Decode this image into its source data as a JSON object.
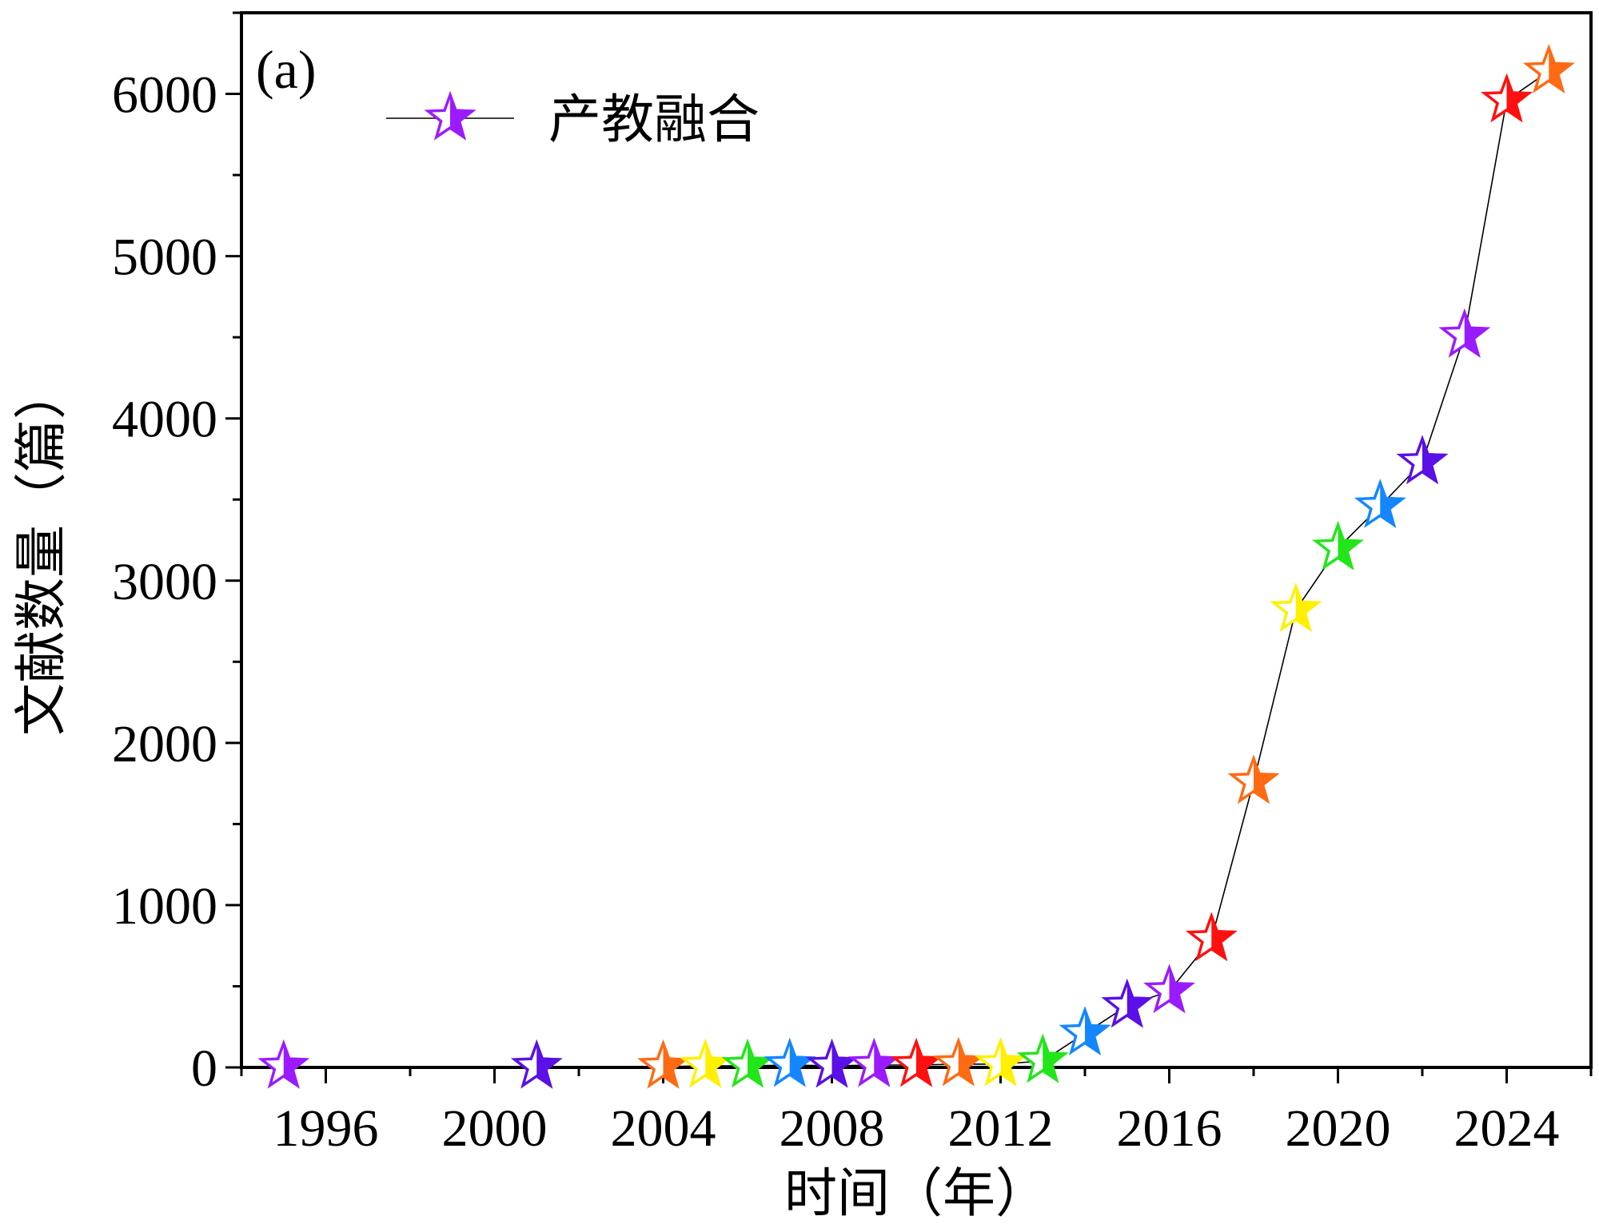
{
  "chart_data": {
    "type": "line",
    "panel_label": "(a)",
    "xlabel": "时间（年）",
    "ylabel": "文献数量（篇）",
    "xlim": [
      1994,
      2026
    ],
    "ylim": [
      0,
      6500
    ],
    "x_ticks": [
      1996,
      2000,
      2004,
      2008,
      2012,
      2016,
      2020,
      2024
    ],
    "y_ticks": [
      0,
      1000,
      2000,
      3000,
      4000,
      5000,
      6000
    ],
    "legend": {
      "position": "top-left",
      "entries": [
        {
          "label": "产教融合",
          "marker": "star",
          "color": "#9B1BFF"
        }
      ]
    },
    "line_color": "#000000",
    "series": [
      {
        "name": "产教融合",
        "x": [
          1995,
          2001,
          2004,
          2005,
          2006,
          2007,
          2008,
          2009,
          2010,
          2011,
          2012,
          2013,
          2014,
          2015,
          2016,
          2017,
          2018,
          2019,
          2020,
          2021,
          2022,
          2023,
          2024,
          2025
        ],
        "y": [
          5,
          5,
          5,
          10,
          10,
          15,
          10,
          15,
          15,
          20,
          20,
          40,
          210,
          380,
          470,
          790,
          1760,
          2820,
          3200,
          3460,
          3730,
          4510,
          5960,
          6140
        ],
        "marker_colors": [
          "#9B1BFF",
          "#5A10E6",
          "#FF6A13",
          "#FFF000",
          "#22E61A",
          "#1487FF",
          "#5A10E6",
          "#9B1BFF",
          "#FF1010",
          "#FF6A13",
          "#FFF000",
          "#22E61A",
          "#1487FF",
          "#5A10E6",
          "#9B1BFF",
          "#FF1010",
          "#FF6A13",
          "#FFF000",
          "#22E61A",
          "#1487FF",
          "#5A10E6",
          "#9B1BFF",
          "#FF1010",
          "#FF6A13"
        ]
      }
    ]
  }
}
